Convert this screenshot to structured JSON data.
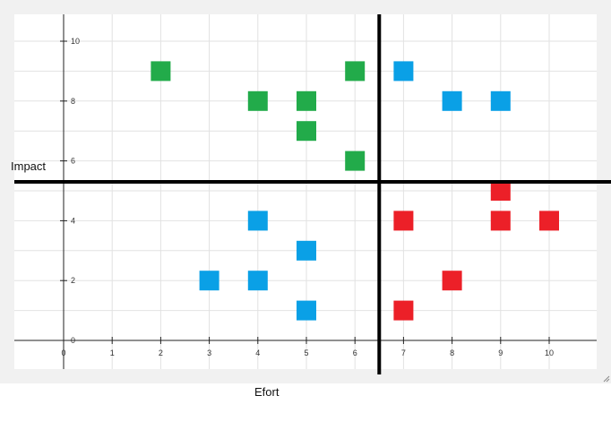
{
  "chart_data": {
    "type": "scatter",
    "title": "",
    "xlabel": "Efort",
    "ylabel": "Impact",
    "xlim": [
      -1,
      11
    ],
    "ylim": [
      -1,
      11
    ],
    "x_ticks": [
      0,
      1,
      2,
      3,
      4,
      5,
      6,
      7,
      8,
      9,
      10
    ],
    "y_ticks": [
      0,
      2,
      4,
      6,
      8,
      10
    ],
    "grid": true,
    "marker": "square",
    "quadrant_dividers": {
      "x": 6.5,
      "y": 5.3
    },
    "groups": [
      {
        "color": "#22ab4a",
        "points": [
          [
            2,
            9
          ],
          [
            4,
            8
          ],
          [
            5,
            8
          ],
          [
            5,
            7
          ],
          [
            6,
            9
          ],
          [
            6,
            6
          ]
        ]
      },
      {
        "color": "#0aa0e6",
        "points": [
          [
            7,
            9
          ],
          [
            8,
            8
          ],
          [
            9,
            8
          ],
          [
            4,
            4
          ],
          [
            5,
            3
          ],
          [
            3,
            2
          ],
          [
            4,
            2
          ],
          [
            5,
            1
          ]
        ]
      },
      {
        "color": "#ec2028",
        "points": [
          [
            9,
            5
          ],
          [
            7,
            4
          ],
          [
            9,
            4
          ],
          [
            10,
            4
          ],
          [
            8,
            2
          ],
          [
            7,
            1
          ]
        ]
      }
    ]
  }
}
